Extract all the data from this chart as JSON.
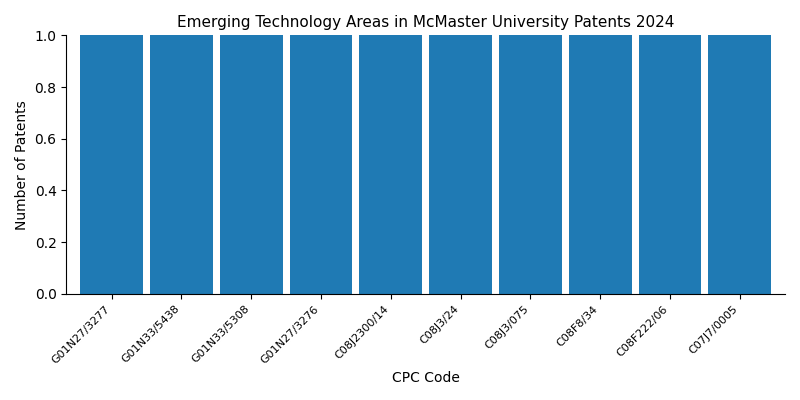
{
  "title": "Emerging Technology Areas in McMaster University Patents 2024",
  "xlabel": "CPC Code",
  "ylabel": "Number of Patents",
  "categories": [
    "G01N27/3277",
    "G01N33/5438",
    "G01N33/5308",
    "G01N27/3276",
    "C08J2300/14",
    "C08J3/24",
    "C08J3/075",
    "C08F8/34",
    "C08F222/06",
    "C07J7/0005"
  ],
  "values": [
    1,
    1,
    1,
    1,
    1,
    1,
    1,
    1,
    1,
    1
  ],
  "bar_color": "#1f7ab4",
  "ylim": [
    0,
    1.0
  ],
  "yticks": [
    0.0,
    0.2,
    0.4,
    0.6,
    0.8,
    1.0
  ],
  "bar_width": 0.9,
  "figsize": [
    8.0,
    4.0
  ],
  "dpi": 100,
  "tick_fontsize": 8,
  "label_fontsize": 10,
  "title_fontsize": 11
}
